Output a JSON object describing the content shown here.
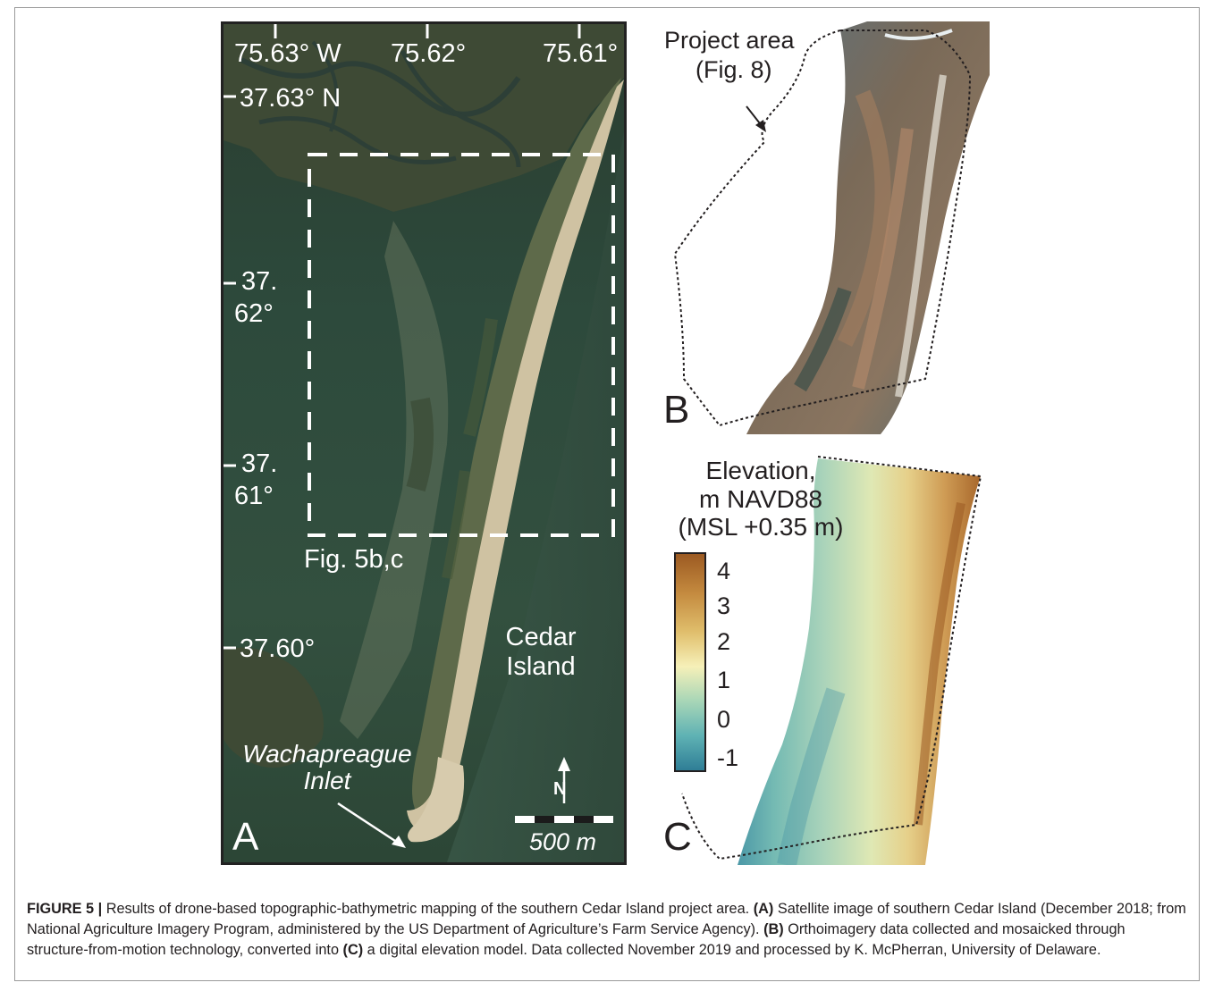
{
  "panel_a": {
    "lon_labels": [
      "75.63° W",
      "75.62°",
      "75.61°"
    ],
    "lat_labels": [
      "37.63° N",
      "37.",
      "62°",
      "37.",
      "61°",
      "37.60°"
    ],
    "inset_label": "Fig. 5b,c",
    "island_label_line1": "Cedar",
    "island_label_line2": "Island",
    "inlet_label_line1": "Wachapreague",
    "inlet_label_line2": "Inlet",
    "scale_label": "500 m",
    "north_label": "N",
    "panel_letter": "A"
  },
  "panel_b": {
    "project_label_line1": "Project area",
    "project_label_line2": "(Fig. 8)",
    "panel_letter": "B"
  },
  "panel_c": {
    "legend_line1": "Elevation,",
    "legend_line2": "m NAVD88",
    "legend_line3": "(MSL +0.35 m)",
    "ticks": [
      "4",
      "3",
      "2",
      "1",
      "0",
      "-1"
    ],
    "panel_letter": "C"
  },
  "caption": {
    "fig_label": "FIGURE 5 |",
    "text1": " Results of drone-based topographic-bathymetric mapping of the southern Cedar Island project area. ",
    "a_label": "(A)",
    "text2": " Satellite image of southern Cedar Island (December 2018; from National Agriculture Imagery Program, administered by the US Department of Agriculture’s Farm Service Agency). ",
    "b_label": "(B)",
    "text3": " Orthoimagery data collected and mosaicked through structure-from-motion technology, converted into ",
    "c_label": "(C)",
    "text4": " a digital elevation model. Data collected November 2019 and processed by K. McPherran, University of Delaware."
  },
  "colors": {
    "water": "#2f4536",
    "marsh": "#3d4a33",
    "beach": "#cfc2a2",
    "legend_high": "#9c5a22",
    "legend_low": "#2f7e96"
  }
}
